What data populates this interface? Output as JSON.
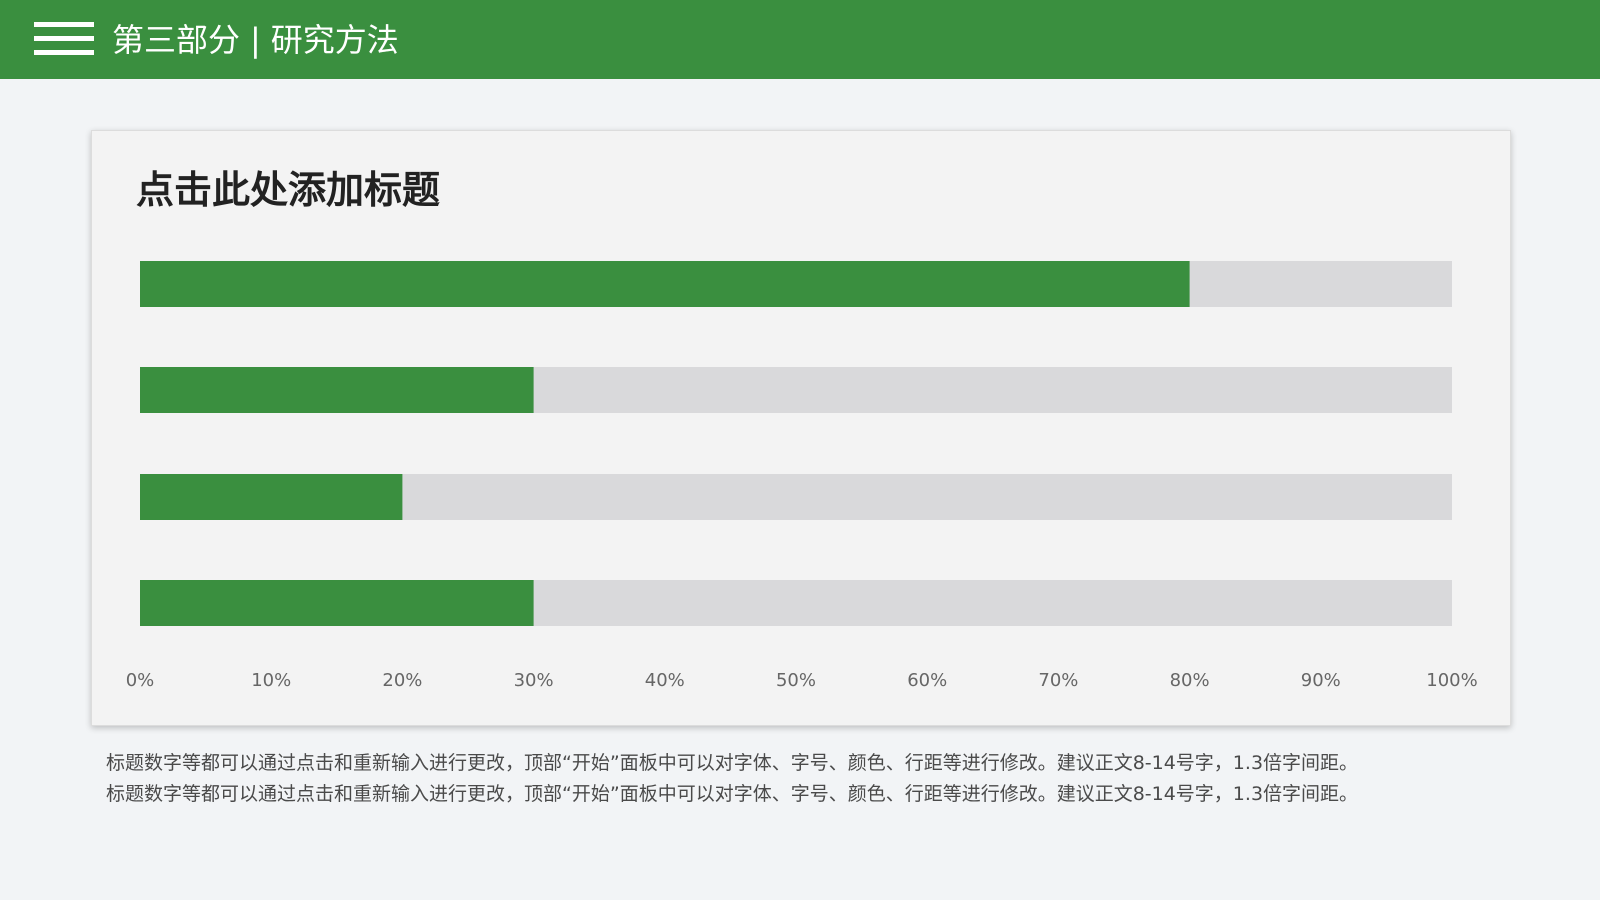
{
  "header": {
    "section": "第三部分",
    "separator": "|",
    "title": "研究方法"
  },
  "colors": {
    "accent": "#3a8f3f",
    "track": "#d9d9db",
    "background": "#f2f4f6"
  },
  "card": {
    "title": "点击此处添加标题"
  },
  "chart_data": {
    "type": "bar",
    "orientation": "horizontal",
    "values": [
      0.8,
      0.3,
      0.2,
      0.3
    ],
    "xlim": [
      0,
      1
    ],
    "tick_labels": [
      "0%",
      "10%",
      "20%",
      "30%",
      "40%",
      "50%",
      "60%",
      "70%",
      "80%",
      "90%",
      "100%"
    ],
    "grid": false
  },
  "body": {
    "paragraphs": [
      "标题数字等都可以通过点击和重新输入进行更改，顶部“开始”面板中可以对字体、字号、颜色、行距等进行修改。建议正文8-14号字，1.3倍字间距。",
      "标题数字等都可以通过点击和重新输入进行更改，顶部“开始”面板中可以对字体、字号、颜色、行距等进行修改。建议正文8-14号字，1.3倍字间距。"
    ]
  }
}
